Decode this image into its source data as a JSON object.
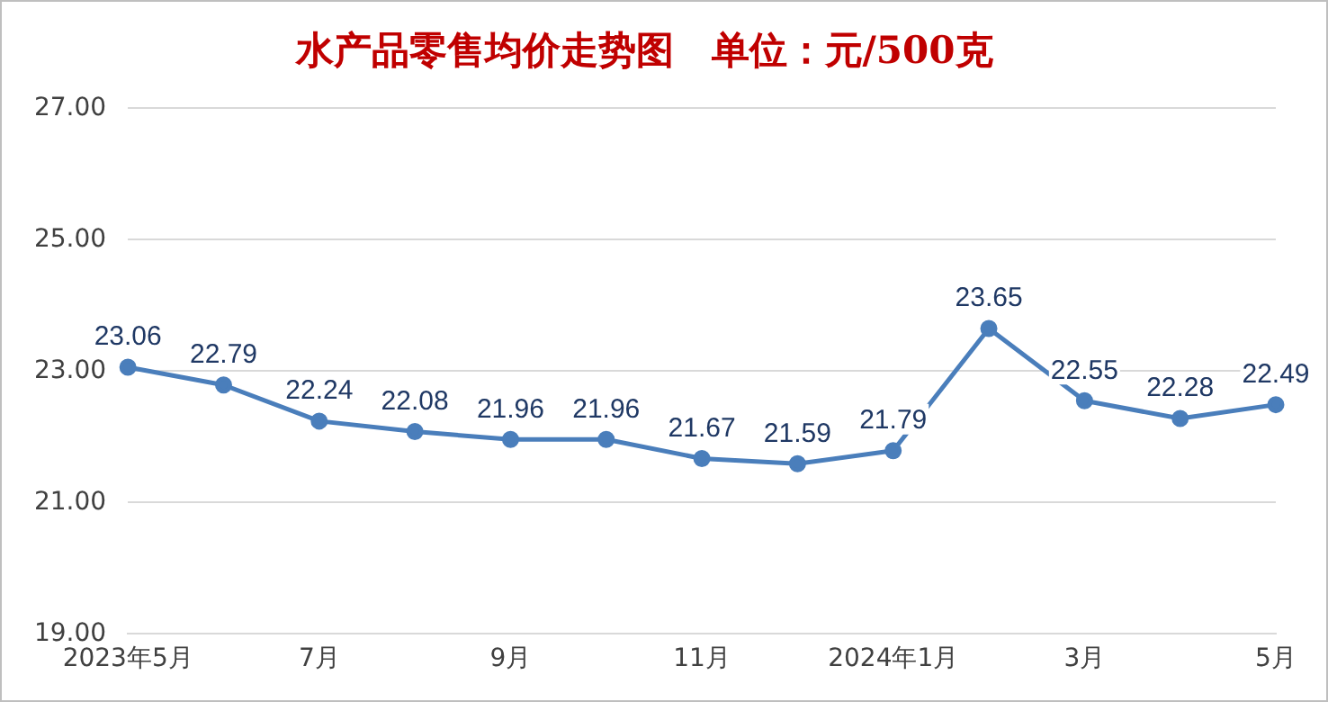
{
  "chart_data": {
    "type": "line",
    "title": "水产品零售均价走势图　单位：元/500克",
    "categories": [
      "2023年5月",
      null,
      "7月",
      null,
      "9月",
      null,
      "11月",
      null,
      "2024年1月",
      null,
      "3月",
      null,
      "5月"
    ],
    "series": [
      {
        "color": "#4a7ebb",
        "values": [
          23.06,
          22.79,
          22.24,
          22.08,
          21.96,
          21.96,
          21.67,
          21.59,
          21.79,
          23.65,
          22.55,
          22.28,
          22.49
        ]
      }
    ],
    "ylim": [
      19,
      27
    ],
    "yticks": [
      {
        "value": 19,
        "label": "19.00"
      },
      {
        "value": 21,
        "label": "21.00"
      },
      {
        "value": 23,
        "label": "23.00"
      },
      {
        "value": 25,
        "label": "25.00"
      },
      {
        "value": 27,
        "label": "27.00"
      }
    ],
    "grid": "y",
    "marker": "circle",
    "line_style": "solid",
    "data_labels": true,
    "legend": false
  }
}
